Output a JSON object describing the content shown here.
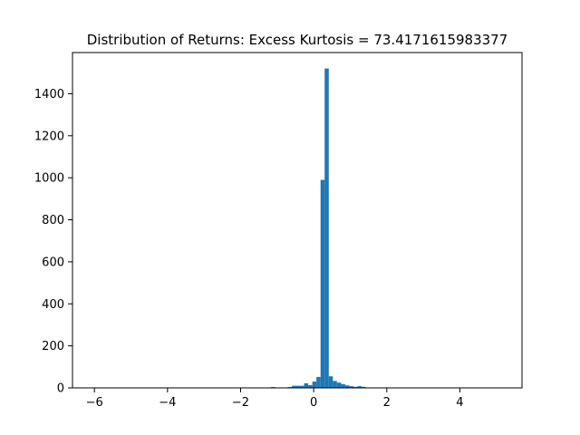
{
  "chart_data": {
    "type": "bar",
    "title": "Distribution of Returns: Excess Kurtosis = 73.4171615983377",
    "xlabel": "",
    "ylabel": "",
    "bar_color": "#1f77b4",
    "bins": {
      "start": -6.0,
      "width": 0.1125,
      "counts": [
        1,
        0,
        0,
        0,
        0,
        0,
        0,
        0,
        0,
        0,
        0,
        0,
        0,
        0,
        0,
        0,
        0,
        0,
        0,
        0,
        0,
        0,
        0,
        0,
        0,
        0,
        0,
        0,
        0,
        0,
        0,
        0,
        0,
        0,
        0,
        0,
        0,
        0,
        1,
        1,
        1,
        1,
        2,
        4,
        1,
        1,
        1,
        4,
        10,
        10,
        10,
        22,
        13,
        30,
        52,
        990,
        1520,
        55,
        33,
        25,
        18,
        12,
        8,
        5,
        8,
        5,
        2,
        1,
        1,
        1,
        1,
        0,
        0,
        0,
        0,
        0,
        0,
        0,
        0,
        0,
        0,
        0,
        0,
        0,
        0,
        0,
        0,
        0,
        0,
        0,
        0,
        0,
        0,
        0,
        0,
        0,
        0,
        0,
        0,
        1
      ]
    },
    "xlim": [
      -6.6,
      5.7
    ],
    "ylim": [
      0,
      1596
    ],
    "xticks": [
      -6,
      -4,
      -2,
      0,
      2,
      4
    ],
    "yticks": [
      0,
      200,
      400,
      600,
      800,
      1000,
      1200,
      1400
    ],
    "grid": false,
    "legend": "none"
  }
}
